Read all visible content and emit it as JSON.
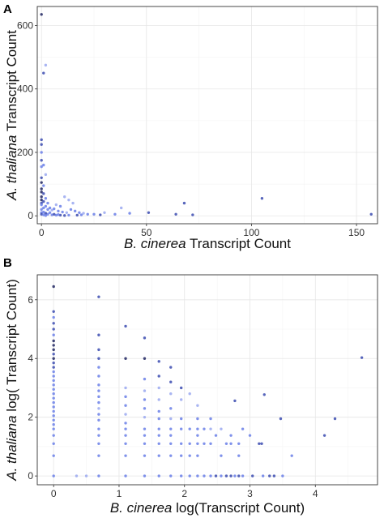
{
  "chart_data": [
    {
      "panel": "A",
      "type": "scatter",
      "xlabel": {
        "italic": "B. cinerea",
        "rest": " Transcript Count"
      },
      "ylabel": {
        "italic": "A. thaliana",
        "rest": " Transcript Count"
      },
      "xlim": [
        -2,
        160
      ],
      "ylim": [
        -25,
        660
      ],
      "xticks": [
        0,
        50,
        100,
        150
      ],
      "yticks": [
        0,
        200,
        400,
        600
      ],
      "grid": true,
      "point_colors": [
        "#6a7fe8",
        "#3b4bb0",
        "#1e2460",
        "#9aa8f0"
      ],
      "points": [
        {
          "x": 0,
          "y": 635,
          "c": 2
        },
        {
          "x": 2,
          "y": 475,
          "c": 3
        },
        {
          "x": 1,
          "y": 450,
          "c": 1
        },
        {
          "x": 0,
          "y": 240,
          "c": 1
        },
        {
          "x": 0,
          "y": 225,
          "c": 1
        },
        {
          "x": 0,
          "y": 200,
          "c": 0
        },
        {
          "x": 0,
          "y": 175,
          "c": 1
        },
        {
          "x": 0,
          "y": 155,
          "c": 0
        },
        {
          "x": 1,
          "y": 160,
          "c": 0
        },
        {
          "x": 2,
          "y": 130,
          "c": 3
        },
        {
          "x": 0,
          "y": 120,
          "c": 1
        },
        {
          "x": 0,
          "y": 105,
          "c": 2
        },
        {
          "x": 1,
          "y": 95,
          "c": 0
        },
        {
          "x": 0,
          "y": 85,
          "c": 2
        },
        {
          "x": 0,
          "y": 75,
          "c": 2
        },
        {
          "x": 1,
          "y": 70,
          "c": 1
        },
        {
          "x": 0,
          "y": 60,
          "c": 2
        },
        {
          "x": 2,
          "y": 55,
          "c": 0
        },
        {
          "x": 0,
          "y": 50,
          "c": 2
        },
        {
          "x": 1,
          "y": 45,
          "c": 1
        },
        {
          "x": 0,
          "y": 40,
          "c": 1
        },
        {
          "x": 3,
          "y": 40,
          "c": 0
        },
        {
          "x": 0,
          "y": 35,
          "c": 0
        },
        {
          "x": 2,
          "y": 30,
          "c": 0
        },
        {
          "x": 1,
          "y": 25,
          "c": 0
        },
        {
          "x": 4,
          "y": 25,
          "c": 0
        },
        {
          "x": 0,
          "y": 20,
          "c": 0
        },
        {
          "x": 3,
          "y": 20,
          "c": 0
        },
        {
          "x": 5,
          "y": 18,
          "c": 3
        },
        {
          "x": 6,
          "y": 22,
          "c": 0
        },
        {
          "x": 8,
          "y": 15,
          "c": 0
        },
        {
          "x": 10,
          "y": 12,
          "c": 0
        },
        {
          "x": 12,
          "y": 10,
          "c": 3
        },
        {
          "x": 9,
          "y": 30,
          "c": 0
        },
        {
          "x": 7,
          "y": 35,
          "c": 3
        },
        {
          "x": 11,
          "y": 60,
          "c": 3
        },
        {
          "x": 13,
          "y": 50,
          "c": 3
        },
        {
          "x": 15,
          "y": 40,
          "c": 3
        },
        {
          "x": 14,
          "y": 20,
          "c": 0
        },
        {
          "x": 16,
          "y": 15,
          "c": 0
        },
        {
          "x": 18,
          "y": 10,
          "c": 0
        },
        {
          "x": 20,
          "y": 8,
          "c": 3
        },
        {
          "x": 22,
          "y": 5,
          "c": 0
        },
        {
          "x": 25,
          "y": 5,
          "c": 0
        },
        {
          "x": 28,
          "y": 3,
          "c": 1
        },
        {
          "x": 30,
          "y": 10,
          "c": 3
        },
        {
          "x": 35,
          "y": 5,
          "c": 0
        },
        {
          "x": 38,
          "y": 25,
          "c": 3
        },
        {
          "x": 42,
          "y": 8,
          "c": 0
        },
        {
          "x": 51,
          "y": 10,
          "c": 1
        },
        {
          "x": 64,
          "y": 5,
          "c": 1
        },
        {
          "x": 68,
          "y": 40,
          "c": 1
        },
        {
          "x": 72,
          "y": 3,
          "c": 1
        },
        {
          "x": 105,
          "y": 55,
          "c": 1
        },
        {
          "x": 157,
          "y": 5,
          "c": 1
        },
        {
          "x": 3,
          "y": 5,
          "c": 0
        },
        {
          "x": 5,
          "y": 3,
          "c": 0
        },
        {
          "x": 7,
          "y": 2,
          "c": 0
        },
        {
          "x": 9,
          "y": 2,
          "c": 1
        },
        {
          "x": 11,
          "y": 1,
          "c": 1
        },
        {
          "x": 13,
          "y": 2,
          "c": 0
        },
        {
          "x": 2,
          "y": 8,
          "c": 1
        },
        {
          "x": 4,
          "y": 10,
          "c": 0
        },
        {
          "x": 6,
          "y": 5,
          "c": 1
        },
        {
          "x": 8,
          "y": 4,
          "c": 0
        },
        {
          "x": 1,
          "y": 12,
          "c": 0
        },
        {
          "x": 0,
          "y": 10,
          "c": 0
        },
        {
          "x": 0,
          "y": 5,
          "c": 1
        },
        {
          "x": 1,
          "y": 3,
          "c": 0
        },
        {
          "x": 2,
          "y": 1,
          "c": 0
        },
        {
          "x": 17,
          "y": 2,
          "c": 1
        },
        {
          "x": 19,
          "y": 3,
          "c": 0
        }
      ]
    },
    {
      "panel": "B",
      "type": "scatter",
      "xlabel": {
        "italic": "B. cinerea",
        "rest": " log(Transcript Count)"
      },
      "ylabel": {
        "italic": "A. thaliana",
        "rest": " log( Transcript Count)"
      },
      "xlim": [
        -0.25,
        4.95
      ],
      "ylim": [
        -0.3,
        6.85
      ],
      "xticks": [
        0,
        1,
        2,
        3,
        4
      ],
      "yticks": [
        0,
        2,
        4,
        6
      ],
      "grid": true,
      "point_colors": [
        "#6a7fe8",
        "#3b4bb0",
        "#1e2460",
        "#9aa8f0"
      ],
      "points": [
        {
          "x": 0,
          "y": 6.45,
          "c": 2
        },
        {
          "x": 0,
          "y": 5.6,
          "c": 1
        },
        {
          "x": 0,
          "y": 5.4,
          "c": 0
        },
        {
          "x": 0,
          "y": 5.2,
          "c": 1
        },
        {
          "x": 0,
          "y": 5.0,
          "c": 1
        },
        {
          "x": 0,
          "y": 4.8,
          "c": 0
        },
        {
          "x": 0,
          "y": 4.6,
          "c": 2
        },
        {
          "x": 0,
          "y": 4.45,
          "c": 2
        },
        {
          "x": 0,
          "y": 4.3,
          "c": 2
        },
        {
          "x": 0,
          "y": 4.15,
          "c": 1
        },
        {
          "x": 0,
          "y": 4.0,
          "c": 2
        },
        {
          "x": 0,
          "y": 3.85,
          "c": 1
        },
        {
          "x": 0,
          "y": 3.7,
          "c": 1
        },
        {
          "x": 0,
          "y": 3.55,
          "c": 0
        },
        {
          "x": 0,
          "y": 3.4,
          "c": 0
        },
        {
          "x": 0,
          "y": 3.25,
          "c": 0
        },
        {
          "x": 0,
          "y": 3.1,
          "c": 0
        },
        {
          "x": 0,
          "y": 2.95,
          "c": 0
        },
        {
          "x": 0,
          "y": 2.8,
          "c": 0
        },
        {
          "x": 0,
          "y": 2.65,
          "c": 0
        },
        {
          "x": 0,
          "y": 2.5,
          "c": 0
        },
        {
          "x": 0,
          "y": 2.35,
          "c": 0
        },
        {
          "x": 0,
          "y": 2.2,
          "c": 0
        },
        {
          "x": 0,
          "y": 2.05,
          "c": 0
        },
        {
          "x": 0,
          "y": 1.9,
          "c": 0
        },
        {
          "x": 0,
          "y": 1.75,
          "c": 0
        },
        {
          "x": 0,
          "y": 1.6,
          "c": 0
        },
        {
          "x": 0,
          "y": 1.38,
          "c": 0
        },
        {
          "x": 0,
          "y": 1.1,
          "c": 0
        },
        {
          "x": 0,
          "y": 0.69,
          "c": 0
        },
        {
          "x": 0,
          "y": 0,
          "c": 0
        },
        {
          "x": 0.69,
          "y": 6.1,
          "c": 1
        },
        {
          "x": 0.69,
          "y": 4.8,
          "c": 1
        },
        {
          "x": 0.69,
          "y": 4.3,
          "c": 1
        },
        {
          "x": 0.69,
          "y": 4.0,
          "c": 1
        },
        {
          "x": 0.69,
          "y": 3.7,
          "c": 0
        },
        {
          "x": 0.69,
          "y": 3.4,
          "c": 0
        },
        {
          "x": 0.69,
          "y": 3.1,
          "c": 0
        },
        {
          "x": 0.69,
          "y": 2.9,
          "c": 0
        },
        {
          "x": 0.69,
          "y": 2.7,
          "c": 0
        },
        {
          "x": 0.69,
          "y": 2.5,
          "c": 0
        },
        {
          "x": 0.69,
          "y": 2.3,
          "c": 3
        },
        {
          "x": 0.69,
          "y": 2.1,
          "c": 0
        },
        {
          "x": 0.69,
          "y": 1.9,
          "c": 0
        },
        {
          "x": 0.69,
          "y": 1.6,
          "c": 0
        },
        {
          "x": 0.69,
          "y": 1.38,
          "c": 0
        },
        {
          "x": 0.69,
          "y": 1.1,
          "c": 0
        },
        {
          "x": 0.69,
          "y": 0.69,
          "c": 0
        },
        {
          "x": 0.69,
          "y": 0,
          "c": 0
        },
        {
          "x": 1.1,
          "y": 5.1,
          "c": 1
        },
        {
          "x": 1.1,
          "y": 4.0,
          "c": 2
        },
        {
          "x": 1.1,
          "y": 3.0,
          "c": 3
        },
        {
          "x": 1.1,
          "y": 2.7,
          "c": 0
        },
        {
          "x": 1.1,
          "y": 2.4,
          "c": 0
        },
        {
          "x": 1.1,
          "y": 2.1,
          "c": 3
        },
        {
          "x": 1.1,
          "y": 1.8,
          "c": 0
        },
        {
          "x": 1.1,
          "y": 1.6,
          "c": 0
        },
        {
          "x": 1.1,
          "y": 1.38,
          "c": 0
        },
        {
          "x": 1.1,
          "y": 1.1,
          "c": 0
        },
        {
          "x": 1.1,
          "y": 0.69,
          "c": 0
        },
        {
          "x": 1.1,
          "y": 0,
          "c": 0
        },
        {
          "x": 1.39,
          "y": 4.7,
          "c": 1
        },
        {
          "x": 1.39,
          "y": 4.0,
          "c": 2
        },
        {
          "x": 1.39,
          "y": 3.3,
          "c": 0
        },
        {
          "x": 1.39,
          "y": 2.9,
          "c": 3
        },
        {
          "x": 1.39,
          "y": 2.6,
          "c": 0
        },
        {
          "x": 1.39,
          "y": 2.3,
          "c": 0
        },
        {
          "x": 1.39,
          "y": 2.0,
          "c": 3
        },
        {
          "x": 1.39,
          "y": 1.6,
          "c": 0
        },
        {
          "x": 1.39,
          "y": 1.38,
          "c": 0
        },
        {
          "x": 1.39,
          "y": 1.1,
          "c": 0
        },
        {
          "x": 1.39,
          "y": 0.69,
          "c": 0
        },
        {
          "x": 1.39,
          "y": 0,
          "c": 0
        },
        {
          "x": 1.61,
          "y": 3.9,
          "c": 1
        },
        {
          "x": 1.61,
          "y": 3.4,
          "c": 1
        },
        {
          "x": 1.61,
          "y": 3.0,
          "c": 3
        },
        {
          "x": 1.61,
          "y": 2.6,
          "c": 3
        },
        {
          "x": 1.61,
          "y": 2.2,
          "c": 0
        },
        {
          "x": 1.61,
          "y": 1.95,
          "c": 0
        },
        {
          "x": 1.61,
          "y": 1.6,
          "c": 0
        },
        {
          "x": 1.61,
          "y": 1.38,
          "c": 0
        },
        {
          "x": 1.61,
          "y": 1.1,
          "c": 0
        },
        {
          "x": 1.61,
          "y": 0.69,
          "c": 0
        },
        {
          "x": 1.61,
          "y": 0,
          "c": 0
        },
        {
          "x": 1.79,
          "y": 3.7,
          "c": 1
        },
        {
          "x": 1.79,
          "y": 3.2,
          "c": 1
        },
        {
          "x": 1.79,
          "y": 2.8,
          "c": 3
        },
        {
          "x": 1.79,
          "y": 2.3,
          "c": 0
        },
        {
          "x": 1.79,
          "y": 1.95,
          "c": 3
        },
        {
          "x": 1.79,
          "y": 1.6,
          "c": 0
        },
        {
          "x": 1.79,
          "y": 1.38,
          "c": 0
        },
        {
          "x": 1.79,
          "y": 1.1,
          "c": 0
        },
        {
          "x": 1.79,
          "y": 0.69,
          "c": 0
        },
        {
          "x": 1.79,
          "y": 0,
          "c": 0
        },
        {
          "x": 1.95,
          "y": 3.0,
          "c": 1
        },
        {
          "x": 1.95,
          "y": 2.6,
          "c": 3
        },
        {
          "x": 1.95,
          "y": 1.95,
          "c": 0
        },
        {
          "x": 1.95,
          "y": 1.6,
          "c": 0
        },
        {
          "x": 1.95,
          "y": 1.1,
          "c": 0
        },
        {
          "x": 1.95,
          "y": 0.69,
          "c": 0
        },
        {
          "x": 1.95,
          "y": 0,
          "c": 0
        },
        {
          "x": 2.08,
          "y": 2.8,
          "c": 3
        },
        {
          "x": 2.08,
          "y": 1.6,
          "c": 0
        },
        {
          "x": 2.08,
          "y": 1.1,
          "c": 0
        },
        {
          "x": 2.08,
          "y": 0.69,
          "c": 0
        },
        {
          "x": 2.08,
          "y": 0,
          "c": 0
        },
        {
          "x": 2.2,
          "y": 2.4,
          "c": 3
        },
        {
          "x": 2.2,
          "y": 1.95,
          "c": 0
        },
        {
          "x": 2.2,
          "y": 1.6,
          "c": 0
        },
        {
          "x": 2.2,
          "y": 1.38,
          "c": 0
        },
        {
          "x": 2.2,
          "y": 1.1,
          "c": 0
        },
        {
          "x": 2.2,
          "y": 0.69,
          "c": 0
        },
        {
          "x": 2.2,
          "y": 0,
          "c": 0
        },
        {
          "x": 2.3,
          "y": 1.6,
          "c": 0
        },
        {
          "x": 2.3,
          "y": 1.1,
          "c": 0
        },
        {
          "x": 2.3,
          "y": 0,
          "c": 0
        },
        {
          "x": 2.4,
          "y": 1.95,
          "c": 0
        },
        {
          "x": 2.4,
          "y": 1.6,
          "c": 3
        },
        {
          "x": 2.4,
          "y": 1.1,
          "c": 0
        },
        {
          "x": 2.4,
          "y": 0,
          "c": 0
        },
        {
          "x": 2.48,
          "y": 1.38,
          "c": 0
        },
        {
          "x": 2.48,
          "y": 0,
          "c": 1
        },
        {
          "x": 2.56,
          "y": 1.6,
          "c": 3
        },
        {
          "x": 2.56,
          "y": 0.69,
          "c": 0
        },
        {
          "x": 2.56,
          "y": 0,
          "c": 0
        },
        {
          "x": 2.64,
          "y": 1.1,
          "c": 0
        },
        {
          "x": 2.64,
          "y": 0,
          "c": 1
        },
        {
          "x": 2.71,
          "y": 1.38,
          "c": 0
        },
        {
          "x": 2.71,
          "y": 1.1,
          "c": 0
        },
        {
          "x": 2.71,
          "y": 0,
          "c": 1
        },
        {
          "x": 2.77,
          "y": 2.56,
          "c": 1
        },
        {
          "x": 2.77,
          "y": 0,
          "c": 0
        },
        {
          "x": 2.83,
          "y": 1.1,
          "c": 0
        },
        {
          "x": 2.83,
          "y": 0.69,
          "c": 0
        },
        {
          "x": 2.83,
          "y": 0,
          "c": 1
        },
        {
          "x": 2.89,
          "y": 1.6,
          "c": 0
        },
        {
          "x": 2.89,
          "y": 0,
          "c": 0
        },
        {
          "x": 3.0,
          "y": 1.38,
          "c": 0
        },
        {
          "x": 3.04,
          "y": 0,
          "c": 1
        },
        {
          "x": 3.14,
          "y": 1.1,
          "c": 1
        },
        {
          "x": 3.18,
          "y": 1.1,
          "c": 1
        },
        {
          "x": 3.2,
          "y": 0,
          "c": 0
        },
        {
          "x": 3.22,
          "y": 2.77,
          "c": 1
        },
        {
          "x": 3.3,
          "y": 0,
          "c": 1
        },
        {
          "x": 3.37,
          "y": 0,
          "c": 1
        },
        {
          "x": 3.47,
          "y": 1.95,
          "c": 1
        },
        {
          "x": 3.5,
          "y": 0,
          "c": 0
        },
        {
          "x": 3.64,
          "y": 0.69,
          "c": 0
        },
        {
          "x": 4.14,
          "y": 1.38,
          "c": 1
        },
        {
          "x": 4.3,
          "y": 1.95,
          "c": 1
        },
        {
          "x": 4.71,
          "y": 4.03,
          "c": 1
        },
        {
          "x": 0.35,
          "y": 0,
          "c": 3
        },
        {
          "x": 0.5,
          "y": 0,
          "c": 3
        }
      ]
    }
  ]
}
